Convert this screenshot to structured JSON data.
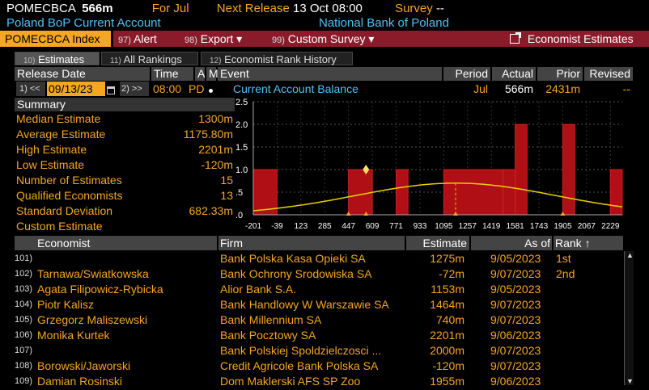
{
  "header": {
    "ticker": "POMECBCA",
    "value": "566m",
    "for_label": "For",
    "for_value": "Jul",
    "next_release_label": "Next Release",
    "next_release_value": "13 Oct 08:00",
    "survey_label": "Survey",
    "survey_value": "--",
    "description": "Poland BoP Current Account",
    "source": "National Bank of Poland"
  },
  "toolbar": {
    "index_label": "POMECBCA Index",
    "alert_num": "97)",
    "alert_label": "Alert",
    "export_num": "98)",
    "export_label": "Export ▾",
    "custom_num": "99)",
    "custom_label": "Custom Survey ▾",
    "economist_label": "Economist Estimates"
  },
  "tabs": [
    {
      "num": "10)",
      "label": "Estimates"
    },
    {
      "num": "11)",
      "label": "All Rankings"
    },
    {
      "num": "12)",
      "label": "Economist Rank History"
    }
  ],
  "release_table": {
    "headers": {
      "release_date": "Release Date",
      "time": "Time",
      "a": "A",
      "m": "M",
      "event": "Event",
      "period": "Period",
      "actual": "Actual",
      "prior": "Prior",
      "revised": "Revised"
    },
    "nav_prev": "1) <<",
    "date_value": "09/13/23",
    "nav_next": "2) >>",
    "time_value": "08:00",
    "a_value": "PD",
    "event_value": "Current Account Balance",
    "period_value": "Jul",
    "actual_value": "566m",
    "prior_value": "2431m",
    "revised_value": "--"
  },
  "summary": {
    "title": "Summary",
    "rows": [
      {
        "label": "Median Estimate",
        "value": "1300m"
      },
      {
        "label": "Average Estimate",
        "value": "1175.80m"
      },
      {
        "label": "High Estimate",
        "value": "2201m"
      },
      {
        "label": "Low Estimate",
        "value": "-120m"
      },
      {
        "label": "Number of Estimates",
        "value": "15"
      },
      {
        "label": "Qualified Economists",
        "value": "13"
      },
      {
        "label": "Standard Deviation",
        "value": "682.33m"
      },
      {
        "label": "Custom Estimate",
        "value": ""
      }
    ]
  },
  "chart_data": {
    "type": "bar",
    "title": "",
    "xlabel": "",
    "ylabel": "",
    "ylim": [
      0,
      2.5
    ],
    "yticks": [
      "2.5",
      "2.0",
      "1.5",
      "1.0",
      ".5",
      ".0"
    ],
    "xticks": [
      "-201",
      "-39",
      "123",
      "285",
      "447",
      "609",
      "771",
      "933",
      "1095",
      "1257",
      "1419",
      "1581",
      "1743",
      "1905",
      "2067",
      "2229"
    ],
    "x_min": -201,
    "x_max": 2310,
    "bars": [
      {
        "from": -201,
        "to": -39,
        "value": 1
      },
      {
        "from": 447,
        "to": 609,
        "value": 1
      },
      {
        "from": 771,
        "to": 852,
        "value": 1
      },
      {
        "from": 1095,
        "to": 1500,
        "value": 1
      },
      {
        "from": 1500,
        "to": 1581,
        "value": 1
      },
      {
        "from": 1581,
        "to": 1662,
        "value": 2
      },
      {
        "from": 1905,
        "to": 1986,
        "value": 2
      },
      {
        "from": 2229,
        "to": 2310,
        "value": 1
      }
    ],
    "curve": {
      "mean": 1175.8,
      "sd": 682.33,
      "peak": 0.7
    },
    "marker_x": 566,
    "colors": {
      "bar": "#b01015",
      "curve": "#e8d000",
      "marker": "#f5a623",
      "grid": "#555"
    }
  },
  "economists": {
    "headers": {
      "economist": "Economist",
      "firm": "Firm",
      "estimate": "Estimate",
      "as_of": "As of",
      "rank": "Rank ↑"
    },
    "rows": [
      {
        "idx": "101)",
        "name": "",
        "firm": "Bank Polska Kasa Opieki SA",
        "estimate": "1275m",
        "as_of": "9/05/2023",
        "rank": "1st"
      },
      {
        "idx": "102)",
        "name": "Tarnawa/Swiatkowska",
        "firm": "Bank Ochrony Srodowiska SA",
        "estimate": "-72m",
        "as_of": "9/07/2023",
        "rank": "2nd"
      },
      {
        "idx": "103)",
        "name": "Agata Filipowicz-Rybicka",
        "firm": "Alior Bank S.A.",
        "estimate": "1153m",
        "as_of": "9/05/2023",
        "rank": ""
      },
      {
        "idx": "104)",
        "name": "Piotr Kalisz",
        "firm": "Bank Handlowy W Warszawie SA",
        "estimate": "1464m",
        "as_of": "9/07/2023",
        "rank": ""
      },
      {
        "idx": "105)",
        "name": "Grzegorz Maliszewski",
        "firm": "Bank Millennium SA",
        "estimate": "740m",
        "as_of": "9/07/2023",
        "rank": ""
      },
      {
        "idx": "106)",
        "name": "Monika Kurtek",
        "firm": "Bank Pocztowy SA",
        "estimate": "2201m",
        "as_of": "9/06/2023",
        "rank": ""
      },
      {
        "idx": "107)",
        "name": "",
        "firm": "Bank Polskiej Spoldzielczosci ...",
        "estimate": "2000m",
        "as_of": "9/07/2023",
        "rank": ""
      },
      {
        "idx": "108)",
        "name": "Borowski/Jaworski",
        "firm": "Credit Agricole Bank Polska SA",
        "estimate": "-120m",
        "as_of": "9/07/2023",
        "rank": ""
      },
      {
        "idx": "109)",
        "name": "Damian Rosinski",
        "firm": "Dom Maklerski AFS SP Zoo",
        "estimate": "1955m",
        "as_of": "9/06/2023",
        "rank": ""
      }
    ]
  }
}
